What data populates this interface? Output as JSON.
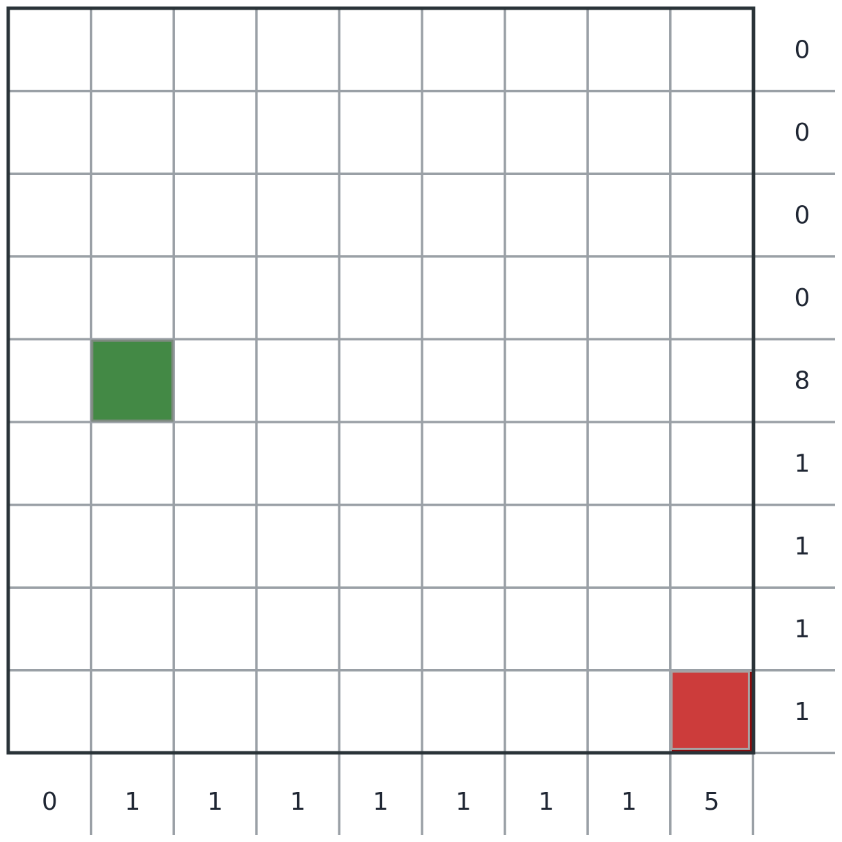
{
  "puzzle": {
    "size": 9,
    "row_clues": [
      "0",
      "0",
      "0",
      "0",
      "8",
      "1",
      "1",
      "1",
      "1"
    ],
    "col_clues": [
      "0",
      "1",
      "1",
      "1",
      "1",
      "1",
      "1",
      "1",
      "5"
    ],
    "start_cell": {
      "row": 4,
      "col": 1,
      "color": "#438945"
    },
    "end_cell": {
      "row": 8,
      "col": 8,
      "color": "#cc3c3b",
      "shadow_color": "#8b0b0b"
    },
    "colors": {
      "grid_line": "#9aa0a6",
      "frame": "#2a3338",
      "clue_text": "#1f2633",
      "background": "#ffffff"
    }
  }
}
